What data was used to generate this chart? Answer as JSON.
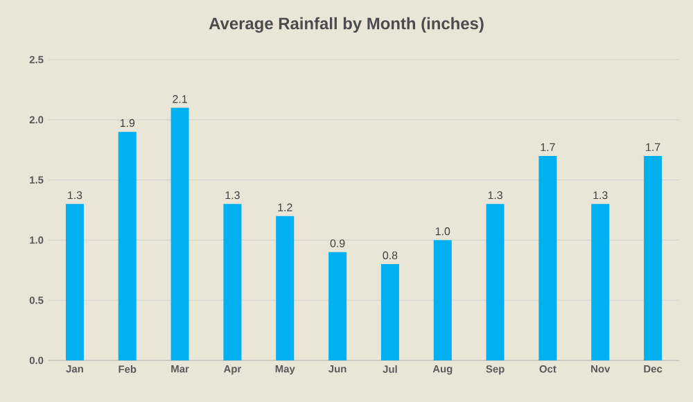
{
  "chart_data": {
    "type": "bar",
    "title": "Average Rainfall by Month (inches)",
    "categories": [
      "Jan",
      "Feb",
      "Mar",
      "Apr",
      "May",
      "Jun",
      "Jul",
      "Aug",
      "Sep",
      "Oct",
      "Nov",
      "Dec"
    ],
    "values": [
      1.3,
      1.9,
      2.1,
      1.3,
      1.2,
      0.9,
      0.8,
      1.0,
      1.3,
      1.7,
      1.3,
      1.7
    ],
    "value_labels": [
      "1.3",
      "1.9",
      "2.1",
      "1.3",
      "1.2",
      "0.9",
      "0.8",
      "1.0",
      "1.3",
      "1.7",
      "1.3",
      "1.7"
    ],
    "color": "#00b0f0",
    "ylim": [
      0,
      2.5
    ],
    "yticks": [
      {
        "value": 0,
        "label": "0.0"
      },
      {
        "value": 0.5,
        "label": "0.5"
      },
      {
        "value": 1,
        "label": "1.0"
      },
      {
        "value": 1.5,
        "label": "1.5"
      },
      {
        "value": 2,
        "label": "2.0"
      },
      {
        "value": 2.5,
        "label": "2.5"
      }
    ],
    "grid": "y"
  }
}
